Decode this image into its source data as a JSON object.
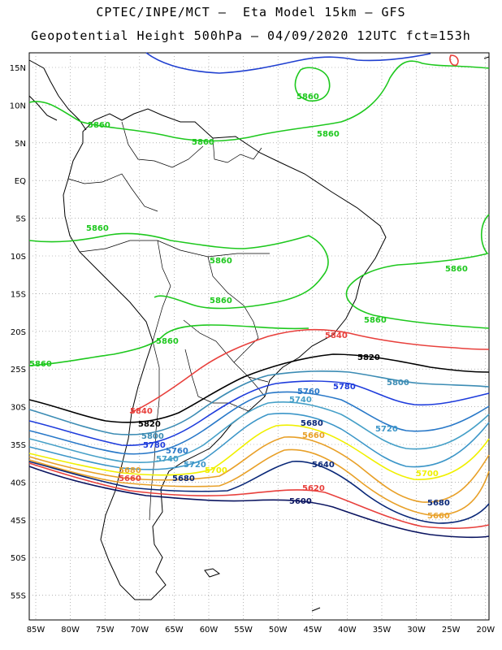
{
  "header": {
    "line1": "CPTEC/INPE/MCT –  Eta Model 15km – GFS",
    "line2": "Geopotential Height 500hPa – 04/09/2020 12UTC fct=153h"
  },
  "axes": {
    "lat_labels": [
      "15N",
      "10N",
      "5N",
      "EQ",
      "5S",
      "10S",
      "15S",
      "20S",
      "25S",
      "30S",
      "35S",
      "40S",
      "45S",
      "50S",
      "55S"
    ],
    "lon_labels": [
      "85W",
      "80W",
      "75W",
      "70W",
      "65W",
      "60W",
      "55W",
      "50W",
      "45W",
      "40W",
      "35W",
      "30W",
      "25W",
      "20W"
    ]
  },
  "colors": {
    "c5580": "#1f3fd0",
    "c5860": "#1ec81e",
    "c5840": "#e8403c",
    "c5820": "#000000",
    "c5800": "#3c8cb4",
    "c5780": "#1e3cdc",
    "c5760": "#2878c8",
    "c5740": "#46a0c8",
    "c5720": "#3c96c8",
    "c5700": "#f0f000",
    "c5680": "#e8a028",
    "c5640": "#0a2878",
    "c5620": "#e8403c",
    "c5600": "#0a1460"
  },
  "contour_labels": {
    "l5860a": "5860",
    "l5860b": "5860",
    "l5860c": "5860",
    "l5860d": "5860",
    "l5860e": "5860",
    "l5860f": "5860",
    "l5860g": "5860",
    "l5860h": "5860",
    "l5860i": "5860",
    "l5860j": "5860",
    "l5860k": "5860",
    "l5840a": "5840",
    "l5840b": "5840",
    "l5820a": "5820",
    "l5820b": "5820",
    "l5800a": "5800",
    "l5800b": "5800",
    "l5780a": "5780",
    "l5780b": "5780",
    "l5760a": "5760",
    "l5760b": "5760",
    "l5740a": "5740",
    "l5740b": "5740",
    "l5720a": "5720",
    "l5720b": "5720",
    "l5700a": "5700",
    "l5700b": "5700",
    "l5680a": "5680",
    "l5680b": "5680",
    "l5680c": "5680",
    "l5680d": "5680",
    "l5660a": "5660",
    "l5660b": "5660",
    "l5660c": "5660",
    "l5640a": "5640",
    "l5620a": "5620",
    "l5600a": "5600"
  }
}
